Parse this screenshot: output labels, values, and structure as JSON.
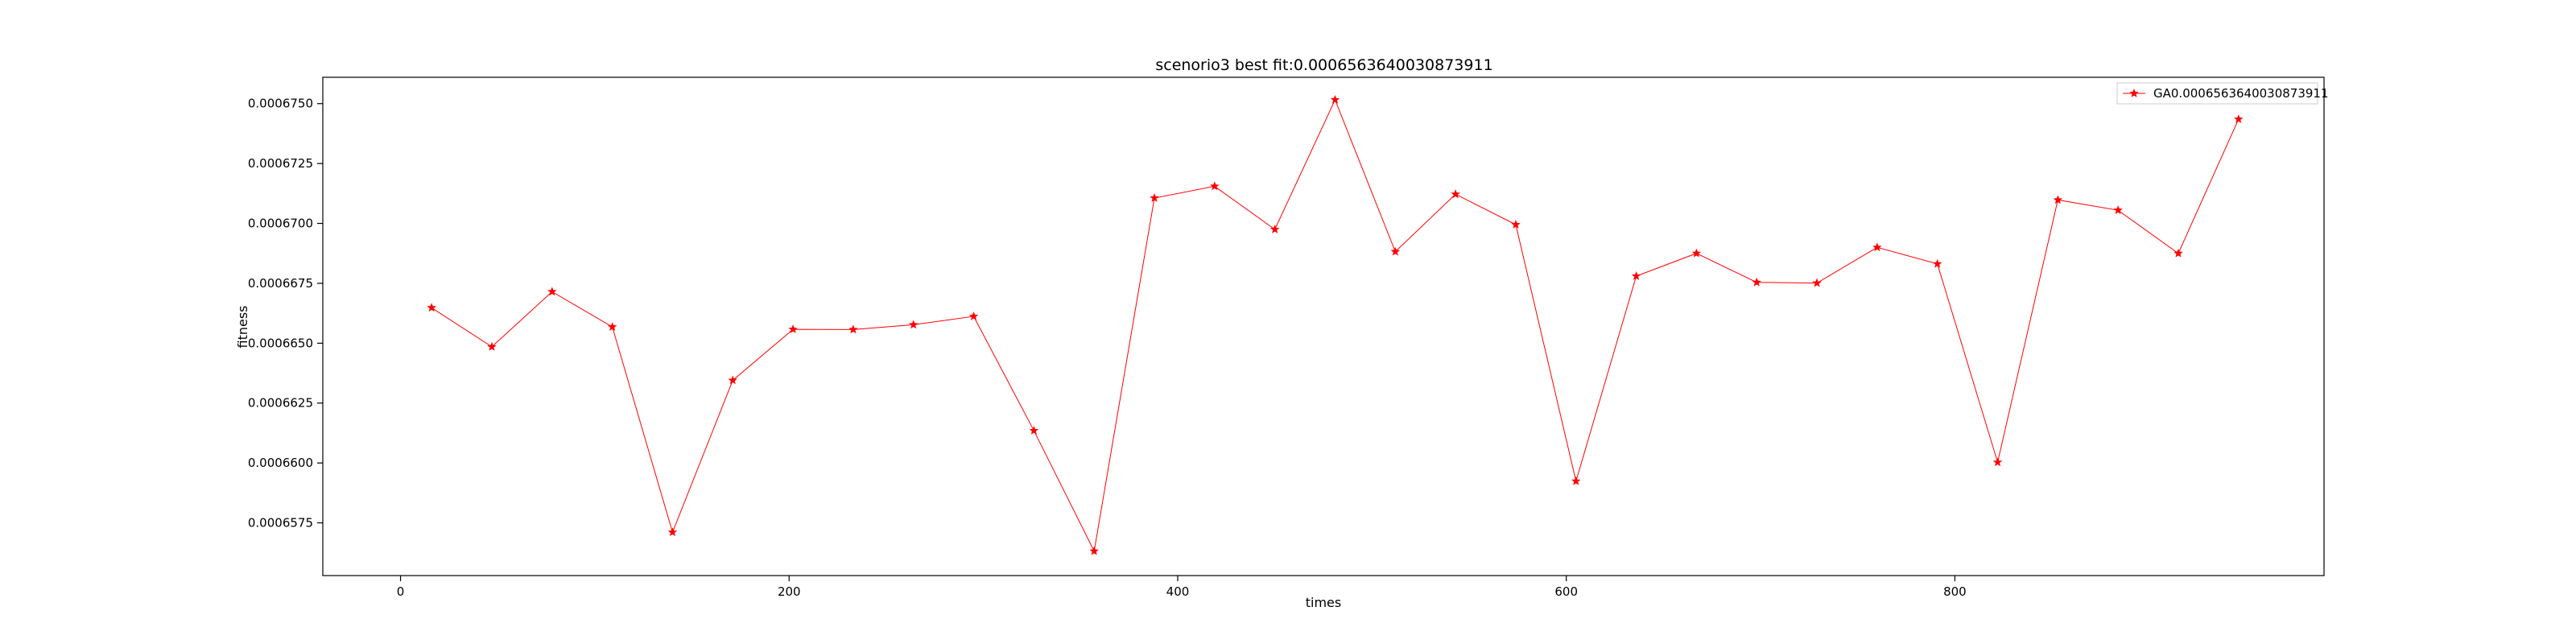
{
  "chart_data": {
    "type": "line",
    "title": "scenorio3 best fit:0.0006563640030873911",
    "xlabel": "times",
    "ylabel": "fitness",
    "xlim": [
      -40,
      990
    ],
    "ylim": [
      0.0006553,
      0.0006761
    ],
    "xticks": [
      0,
      200,
      400,
      600,
      800
    ],
    "yticks": [
      0.0006575,
      0.00066,
      0.0006625,
      0.000665,
      0.0006675,
      0.00067,
      0.0006725,
      0.000675
    ],
    "ytick_labels": [
      "0.0006575",
      "0.0006600",
      "0.0006625",
      "0.0006650",
      "0.0006675",
      "0.0006700",
      "0.0006725",
      "0.0006750"
    ],
    "grid": false,
    "legend_position": "top-right",
    "color": "#ff0000",
    "marker": "star",
    "series": [
      {
        "name": "GA0.0006563640030873911",
        "x": [
          16,
          47,
          78,
          109,
          140,
          171,
          202,
          233,
          264,
          295,
          326,
          357,
          388,
          419,
          450,
          481,
          512,
          543,
          574,
          605,
          636,
          667,
          698,
          729,
          760,
          791,
          822,
          853,
          884,
          915,
          946
        ],
        "y": [
          0.00066648,
          0.00066485,
          0.00066715,
          0.00066568,
          0.00065711,
          0.00066345,
          0.00066558,
          0.00066557,
          0.00066577,
          0.00066612,
          0.00066135,
          0.00065632,
          0.00067106,
          0.00067155,
          0.00066975,
          0.00067516,
          0.00066882,
          0.00067122,
          0.00066995,
          0.00065924,
          0.0006678,
          0.00066875,
          0.00066754,
          0.00066751,
          0.000669,
          0.00066831,
          0.00066003,
          0.00067098,
          0.00067055,
          0.00066875,
          0.00067435
        ]
      }
    ]
  }
}
